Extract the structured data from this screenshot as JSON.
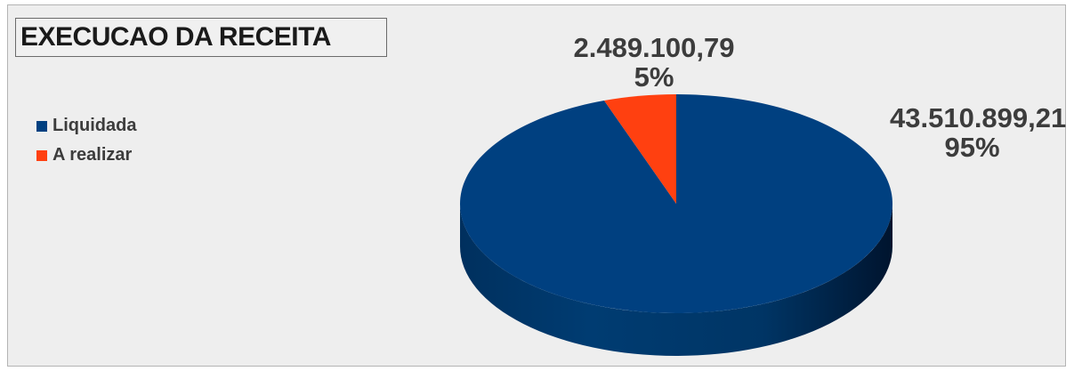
{
  "chart_data": {
    "type": "pie",
    "title": "EXECUCAO DA RECEITA",
    "three_d": true,
    "legend_position": "left",
    "categories": [
      "Liquidada",
      "A realizar"
    ],
    "values": [
      43510899.21,
      2489100.79
    ],
    "percentages": [
      "95%",
      "5%"
    ],
    "value_labels": [
      "43.510.899,21",
      "2.489.100,79"
    ],
    "colors": [
      "#004080",
      "#ff4010"
    ]
  }
}
